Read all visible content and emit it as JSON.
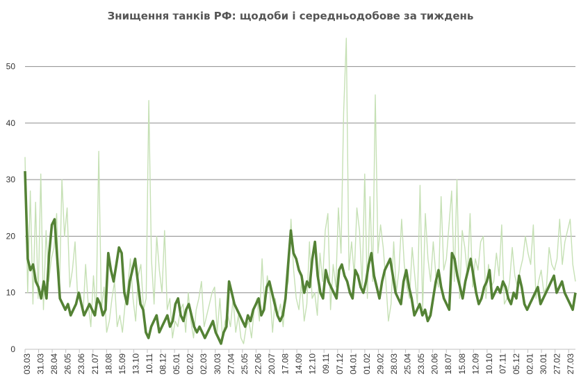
{
  "chart_data": {
    "type": "line",
    "title": "Знищення танків РФ: щодоби і середньодобове за тиждень",
    "xlabel": "",
    "ylabel": "",
    "ylim": [
      0,
      55
    ],
    "yticks": [
      0,
      10,
      20,
      30,
      40,
      50
    ],
    "grid": true,
    "legend": "none",
    "colors": {
      "daily": "#c5e0b4",
      "weekly_avg": "#548235",
      "grid": "#8c8c8c",
      "axis": "#bfbfbf"
    },
    "x_tick_labels": [
      "03.03",
      "31.03",
      "28.04",
      "26.05",
      "23.06",
      "21.07",
      "18.08",
      "15.09",
      "13.10",
      "10.11",
      "08.12",
      "05.01",
      "02.02",
      "02.03",
      "30.03",
      "27.04",
      "25.05",
      "22.06",
      "20.07",
      "17.08",
      "14.09",
      "12.10",
      "09.11",
      "07.12",
      "04.01",
      "01.02",
      "29.02",
      "28.03",
      "25.04",
      "23.05",
      "20.06",
      "18.07",
      "15.08",
      "12.09",
      "10.10",
      "07.11",
      "05.12",
      "02.01",
      "30.01",
      "27.02",
      "27.03"
    ],
    "series": [
      {
        "values": [
          34,
          10,
          28,
          8,
          26,
          9,
          31,
          7,
          21,
          12,
          16,
          18,
          24,
          9,
          30,
          20,
          25,
          11,
          14,
          19,
          9,
          10,
          6,
          15,
          8,
          4,
          13,
          6,
          35,
          7,
          11,
          3,
          5,
          9,
          12,
          4,
          6,
          3,
          8,
          11,
          16,
          9,
          5,
          13,
          15,
          7,
          9,
          44,
          16,
          8,
          20,
          14,
          10,
          21,
          7,
          9,
          2,
          5,
          4,
          7,
          8,
          3,
          10,
          5,
          2,
          7,
          9,
          12,
          4,
          6,
          8,
          10,
          11,
          3,
          9,
          2,
          5,
          6,
          4,
          9,
          3,
          6,
          2,
          1,
          4,
          5,
          2,
          7,
          9,
          5,
          16,
          7,
          13,
          10,
          3,
          9,
          6,
          8,
          4,
          10,
          12,
          23,
          14,
          9,
          7,
          12,
          5,
          8,
          19,
          9,
          10,
          6,
          17,
          12,
          21,
          24,
          7,
          15,
          11,
          25,
          17,
          42,
          55,
          14,
          19,
          13,
          25,
          21,
          11,
          31,
          9,
          27,
          12,
          45,
          17,
          22,
          18,
          12,
          5,
          8,
          19,
          10,
          14,
          23,
          15,
          11,
          9,
          18,
          13,
          8,
          29,
          7,
          24,
          16,
          12,
          19,
          13,
          11,
          27,
          14,
          16,
          22,
          28,
          12,
          30,
          9,
          21,
          18,
          13,
          24,
          11,
          16,
          14,
          19,
          20,
          9,
          15,
          11,
          12,
          17,
          13,
          22,
          8,
          9,
          12,
          18,
          13,
          11,
          14,
          16,
          20,
          17,
          15,
          22,
          9,
          12,
          14,
          10,
          11,
          18,
          15,
          14,
          16,
          23,
          15,
          19,
          21,
          23,
          15,
          12
        ],
        "name": "",
        "style": "daily (thin light)"
      },
      {
        "values": [
          31.5,
          16,
          14,
          15,
          12,
          11,
          9,
          12,
          9,
          17,
          22,
          23,
          16,
          9,
          8,
          7,
          8,
          6,
          7,
          8,
          10,
          8,
          6,
          7,
          8,
          7,
          6,
          9,
          8,
          6,
          7,
          17,
          14,
          12,
          15,
          18,
          17,
          10,
          8,
          12,
          14,
          16,
          12,
          8,
          7,
          3,
          2,
          4,
          5,
          6,
          3,
          4,
          5,
          6,
          4,
          5,
          8,
          9,
          6,
          5,
          7,
          8,
          6,
          4,
          3,
          4,
          3,
          2,
          3,
          4,
          5,
          3,
          2,
          1,
          3,
          4,
          12,
          10,
          8,
          7,
          6,
          5,
          4,
          6,
          5,
          7,
          8,
          9,
          6,
          7,
          11,
          12,
          10,
          8,
          6,
          5,
          6,
          9,
          15,
          21,
          17,
          16,
          14,
          13,
          10,
          12,
          11,
          16,
          19,
          13,
          10,
          9,
          14,
          12,
          11,
          10,
          9,
          14,
          15,
          13,
          12,
          10,
          9,
          14,
          13,
          11,
          10,
          12,
          15,
          17,
          13,
          11,
          9,
          12,
          14,
          15,
          16,
          13,
          10,
          9,
          8,
          12,
          14,
          11,
          9,
          6,
          7,
          8,
          6,
          7,
          5,
          6,
          9,
          12,
          14,
          11,
          9,
          8,
          7,
          17,
          16,
          13,
          11,
          9,
          12,
          14,
          16,
          13,
          10,
          8,
          9,
          11,
          12,
          14,
          9,
          10,
          11,
          10,
          12,
          11,
          9,
          8,
          10,
          9,
          13,
          11,
          8,
          7,
          8,
          9,
          10,
          11,
          8,
          9,
          10,
          11,
          12,
          13,
          10,
          11,
          12,
          10,
          9,
          8,
          7,
          10
        ],
        "name": "",
        "style": "weekly average (thick dark)"
      }
    ]
  }
}
